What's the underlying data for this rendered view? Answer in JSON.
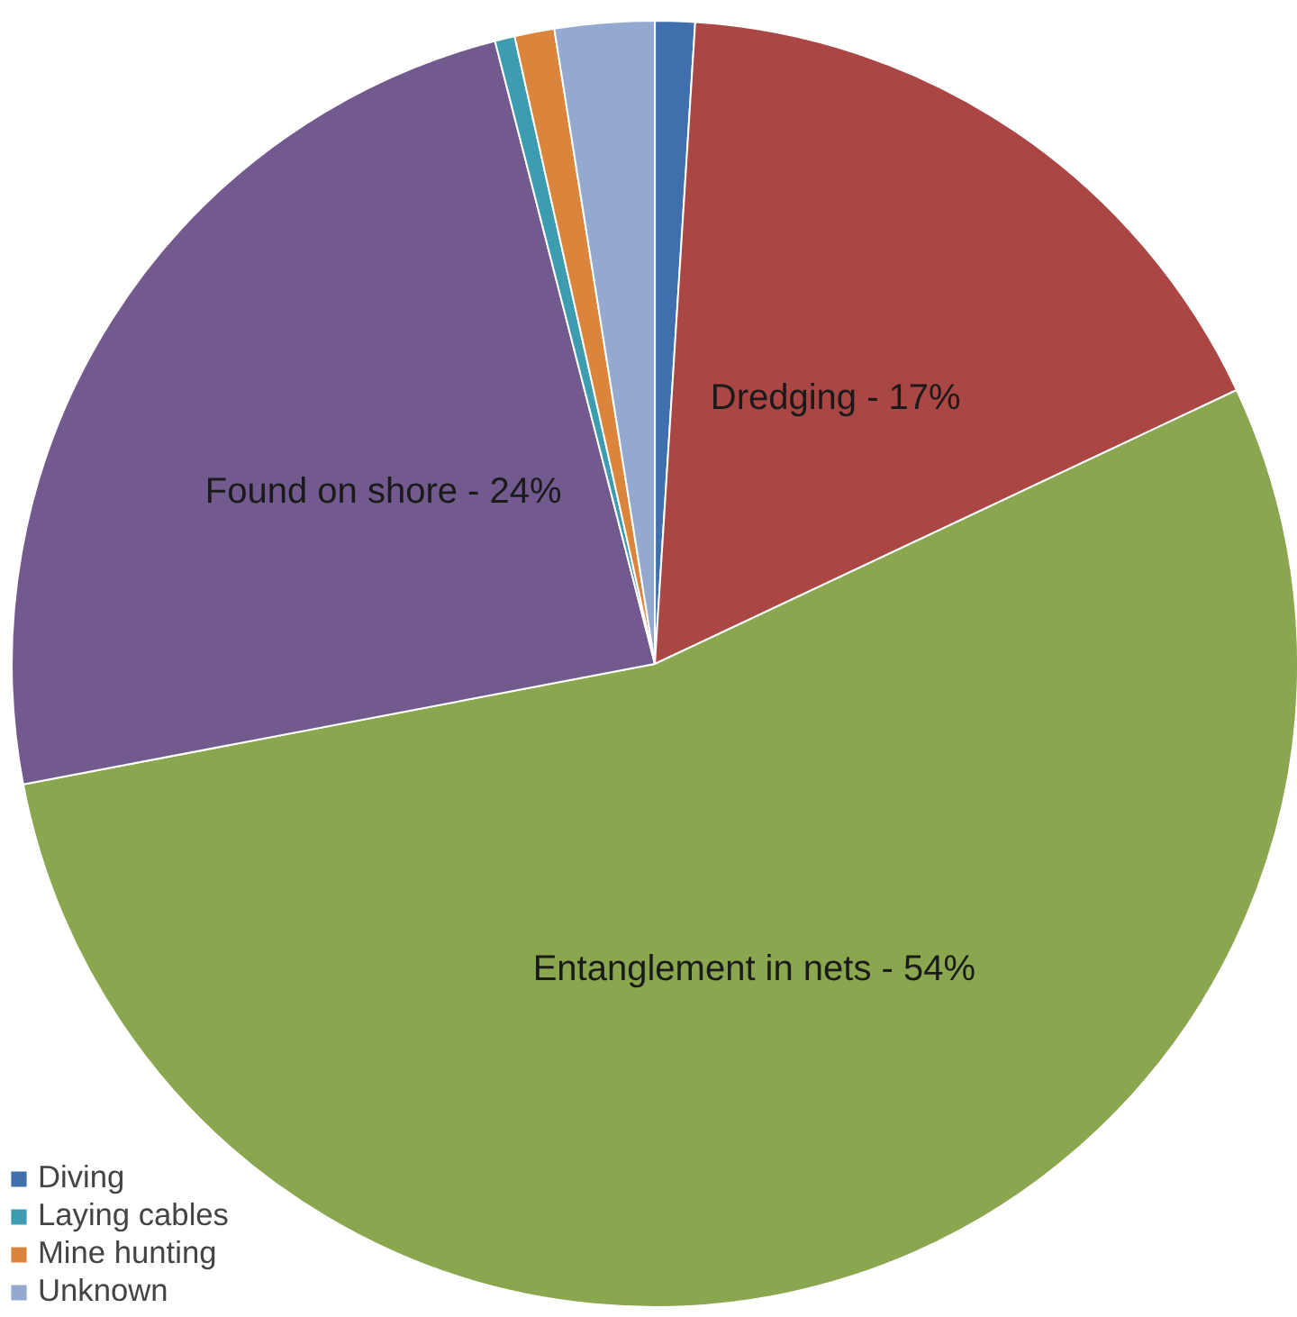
{
  "chart_data": {
    "type": "pie",
    "categories": [
      "Diving",
      "Dredging",
      "Entanglement in nets",
      "Found on shore",
      "Laying cables",
      "Mine hunting",
      "Unknown"
    ],
    "values": [
      1,
      17,
      54,
      24,
      0.5,
      1,
      2.5
    ],
    "colors": [
      "#3f70ad",
      "#aa4643",
      "#8aa64f",
      "#725a8f",
      "#3d9cb0",
      "#db853c",
      "#93a9d0"
    ],
    "value_labels": [
      null,
      "17%",
      "54%",
      "24%",
      null,
      null,
      null
    ],
    "legend": "bottom left"
  }
}
